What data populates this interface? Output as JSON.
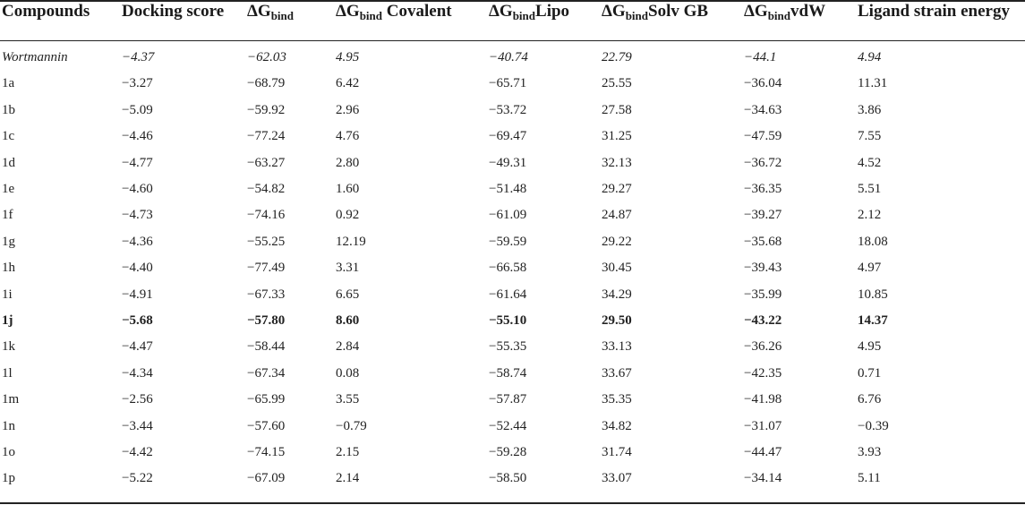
{
  "headers": [
    {
      "main": "Compounds",
      "sub": "",
      "suffix": ""
    },
    {
      "main": "Docking score",
      "sub": "",
      "suffix": ""
    },
    {
      "main": "ΔG",
      "sub": "bind",
      "suffix": ""
    },
    {
      "main": "ΔG",
      "sub": "bind",
      "suffix": " Covalent"
    },
    {
      "main": "ΔG",
      "sub": "bind",
      "suffix": "Lipo"
    },
    {
      "main": "ΔG",
      "sub": "bind",
      "suffix": "Solv GB"
    },
    {
      "main": "ΔG",
      "sub": "bind",
      "suffix": "vdW"
    },
    {
      "main": "Ligand strain energy",
      "sub": "",
      "suffix": ""
    }
  ],
  "rows": [
    {
      "style": "italic",
      "cells": [
        "Wortmannin",
        "−4.37",
        "−62.03",
        "4.95",
        "−40.74",
        "22.79",
        "−44.1",
        "4.94"
      ]
    },
    {
      "style": "normal",
      "cells": [
        "1a",
        "−3.27",
        "−68.79",
        "6.42",
        "−65.71",
        "25.55",
        "−36.04",
        "11.31"
      ]
    },
    {
      "style": "normal",
      "cells": [
        "1b",
        "−5.09",
        "−59.92",
        "2.96",
        "−53.72",
        "27.58",
        "−34.63",
        "3.86"
      ]
    },
    {
      "style": "normal",
      "cells": [
        "1c",
        "−4.46",
        "−77.24",
        "4.76",
        "−69.47",
        "31.25",
        "−47.59",
        "7.55"
      ]
    },
    {
      "style": "normal",
      "cells": [
        "1d",
        "−4.77",
        "−63.27",
        "2.80",
        "−49.31",
        "32.13",
        "−36.72",
        "4.52"
      ]
    },
    {
      "style": "normal",
      "cells": [
        "1e",
        "−4.60",
        "−54.82",
        "1.60",
        "−51.48",
        "29.27",
        "−36.35",
        "5.51"
      ]
    },
    {
      "style": "normal",
      "cells": [
        "1f",
        "−4.73",
        "−74.16",
        "0.92",
        "−61.09",
        "24.87",
        "−39.27",
        "2.12"
      ]
    },
    {
      "style": "normal",
      "cells": [
        "1g",
        "−4.36",
        "−55.25",
        "12.19",
        "−59.59",
        "29.22",
        "−35.68",
        "18.08"
      ]
    },
    {
      "style": "normal",
      "cells": [
        "1h",
        "−4.40",
        "−77.49",
        "3.31",
        "−66.58",
        "30.45",
        "−39.43",
        "4.97"
      ]
    },
    {
      "style": "normal",
      "cells": [
        "1i",
        "−4.91",
        "−67.33",
        "6.65",
        "−61.64",
        "34.29",
        "−35.99",
        "10.85"
      ]
    },
    {
      "style": "bold",
      "cells": [
        "1j",
        "−5.68",
        "−57.80",
        "8.60",
        "−55.10",
        "29.50",
        "−43.22",
        "14.37"
      ]
    },
    {
      "style": "normal",
      "cells": [
        "1k",
        "−4.47",
        "−58.44",
        "2.84",
        "−55.35",
        "33.13",
        "−36.26",
        "4.95"
      ]
    },
    {
      "style": "normal",
      "cells": [
        "1l",
        "−4.34",
        "−67.34",
        "0.08",
        "−58.74",
        "33.67",
        "−42.35",
        "0.71"
      ]
    },
    {
      "style": "normal",
      "cells": [
        "1m",
        "−2.56",
        "−65.99",
        "3.55",
        "−57.87",
        "35.35",
        "−41.98",
        "6.76"
      ]
    },
    {
      "style": "normal",
      "cells": [
        "1n",
        "−3.44",
        "−57.60",
        "−0.79",
        "−52.44",
        "34.82",
        "−31.07",
        "−0.39"
      ]
    },
    {
      "style": "normal",
      "cells": [
        "1o",
        "−4.42",
        "−74.15",
        "2.15",
        "−59.28",
        "31.74",
        "−44.47",
        "3.93"
      ]
    },
    {
      "style": "normal",
      "cells": [
        "1p",
        "−5.22",
        "−67.09",
        "2.14",
        "−58.50",
        "33.07",
        "−34.14",
        "5.11"
      ]
    }
  ]
}
